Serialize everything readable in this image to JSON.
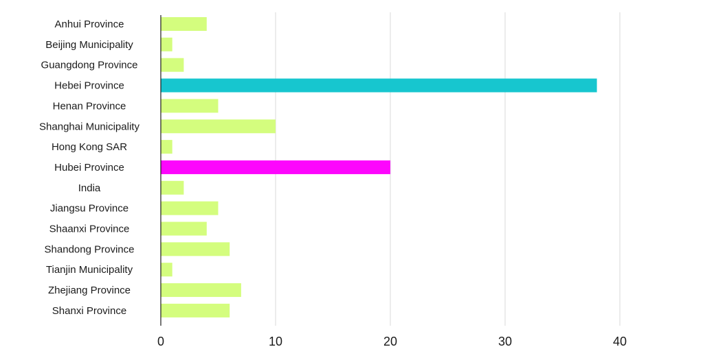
{
  "chart_data": {
    "type": "bar",
    "orientation": "horizontal",
    "categories": [
      "Anhui Province",
      "Beijing Municipality",
      "Guangdong Province",
      "Hebei Province",
      "Henan Province",
      "Shanghai Municipality",
      "Hong Kong SAR",
      "Hubei Province",
      "India",
      "Jiangsu Province",
      "Shaanxi Province",
      "Shandong Province",
      "Tianjin Municipality",
      "Zhejiang Province",
      "Shanxi Province"
    ],
    "values": [
      4,
      1,
      2,
      38,
      5,
      10,
      1,
      20,
      2,
      5,
      4,
      6,
      1,
      7,
      6
    ],
    "bar_colors": [
      "#d4fd7e",
      "#d4fd7e",
      "#d4fd7e",
      "#17c6cf",
      "#d4fd7e",
      "#d4fd7e",
      "#d4fd7e",
      "#fd06fd",
      "#d4fd7e",
      "#d4fd7e",
      "#d4fd7e",
      "#d4fd7e",
      "#d4fd7e",
      "#d4fd7e",
      "#d4fd7e"
    ],
    "xlim": [
      0,
      40
    ],
    "xticks": [
      0,
      10,
      20,
      30,
      40
    ],
    "title": "",
    "xlabel": "",
    "ylabel": "",
    "grid": "vertical",
    "legend": "none"
  }
}
